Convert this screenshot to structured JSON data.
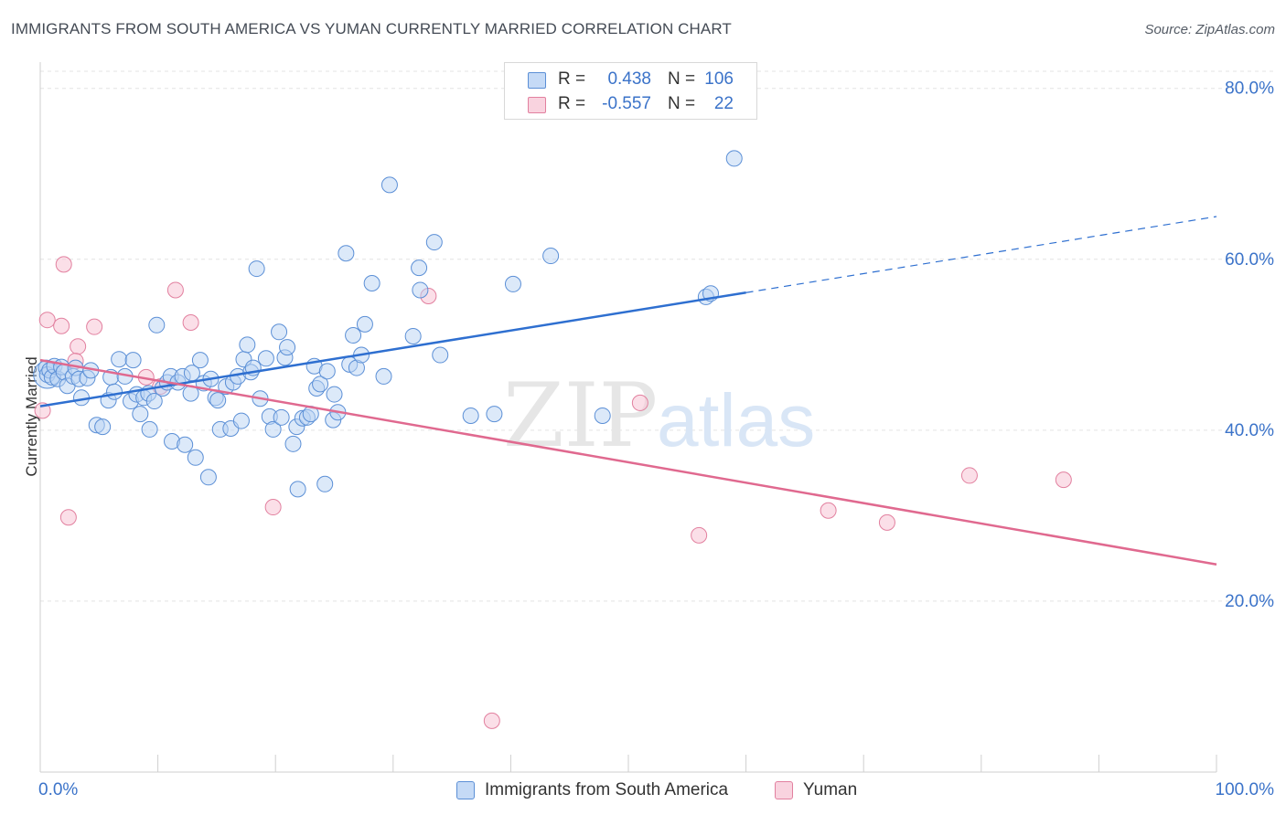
{
  "title": "IMMIGRANTS FROM SOUTH AMERICA VS YUMAN CURRENTLY MARRIED CORRELATION CHART",
  "source": "Source: ZipAtlas.com",
  "watermark": {
    "zip": "ZIP",
    "atlas": "atlas"
  },
  "stats": [
    {
      "r_label": "R =",
      "r_value": "0.438",
      "n_label": "N =",
      "n_value": "106",
      "color": "#a9c9f2",
      "border": "#5b8fd6"
    },
    {
      "r_label": "R =",
      "r_value": "-0.557",
      "n_label": "N =",
      "n_value": "22",
      "color": "#f7bfd0",
      "border": "#e2809f"
    }
  ],
  "legend": [
    {
      "label": "Immigrants from South America",
      "color": "#c5daf6",
      "border": "#5b8fd6"
    },
    {
      "label": "Yuman",
      "color": "#f9d3df",
      "border": "#e2809f"
    }
  ],
  "chart_data": {
    "type": "scatter",
    "title": "IMMIGRANTS FROM SOUTH AMERICA VS YUMAN CURRENTLY MARRIED CORRELATION CHART",
    "xlabel": "",
    "ylabel": "Currently Married",
    "xlim": [
      0,
      100
    ],
    "ylim": [
      0,
      82
    ],
    "x_tick_labels": [
      "0.0%",
      "100.0%"
    ],
    "y_ticks": [
      20,
      40,
      60,
      80
    ],
    "y_tick_labels": [
      "20.0%",
      "40.0%",
      "60.0%",
      "80.0%"
    ],
    "grid": true,
    "legend_position": "bottom",
    "series": [
      {
        "name": "Immigrants from South America",
        "color": "#5b8fd6",
        "fill": "#b9d3f3",
        "trend": {
          "x": [
            0,
            60
          ],
          "y": [
            42.8,
            56.1
          ],
          "dashed_extension": {
            "x": [
              60,
              100
            ],
            "y": [
              56.1,
              65.0
            ]
          },
          "color": "#2e6fd0"
        },
        "points": [
          [
            0.5,
            47.3
          ],
          [
            0.6,
            46.5
          ],
          [
            0.8,
            47.0
          ],
          [
            1.0,
            46.2
          ],
          [
            1.2,
            47.5
          ],
          [
            1.5,
            46.0
          ],
          [
            1.8,
            47.4
          ],
          [
            2.0,
            46.8
          ],
          [
            2.3,
            45.2
          ],
          [
            2.8,
            46.3
          ],
          [
            3.0,
            47.3
          ],
          [
            3.3,
            46.0
          ],
          [
            3.5,
            43.8
          ],
          [
            4.0,
            46.1
          ],
          [
            4.3,
            47.0
          ],
          [
            4.8,
            40.6
          ],
          [
            5.3,
            40.4
          ],
          [
            5.8,
            43.5
          ],
          [
            6.0,
            46.2
          ],
          [
            6.3,
            44.5
          ],
          [
            6.7,
            48.3
          ],
          [
            7.2,
            46.3
          ],
          [
            7.7,
            43.4
          ],
          [
            7.9,
            48.2
          ],
          [
            8.2,
            44.2
          ],
          [
            8.5,
            41.9
          ],
          [
            8.8,
            43.8
          ],
          [
            9.2,
            44.3
          ],
          [
            9.3,
            40.1
          ],
          [
            9.7,
            43.4
          ],
          [
            9.9,
            52.3
          ],
          [
            10.4,
            44.9
          ],
          [
            10.8,
            45.6
          ],
          [
            11.1,
            46.3
          ],
          [
            11.2,
            38.7
          ],
          [
            11.7,
            45.6
          ],
          [
            12.1,
            46.3
          ],
          [
            12.3,
            38.3
          ],
          [
            12.8,
            44.3
          ],
          [
            12.9,
            46.7
          ],
          [
            13.2,
            36.8
          ],
          [
            13.6,
            48.2
          ],
          [
            13.9,
            45.5
          ],
          [
            14.3,
            34.5
          ],
          [
            14.5,
            46.0
          ],
          [
            14.9,
            43.8
          ],
          [
            15.1,
            43.5
          ],
          [
            15.3,
            40.1
          ],
          [
            15.8,
            45.1
          ],
          [
            16.2,
            40.2
          ],
          [
            16.4,
            45.6
          ],
          [
            16.8,
            46.3
          ],
          [
            17.1,
            41.1
          ],
          [
            17.3,
            48.3
          ],
          [
            17.6,
            50.0
          ],
          [
            17.9,
            46.8
          ],
          [
            18.1,
            47.3
          ],
          [
            18.4,
            58.9
          ],
          [
            18.7,
            43.7
          ],
          [
            19.2,
            48.4
          ],
          [
            19.5,
            41.6
          ],
          [
            19.8,
            40.1
          ],
          [
            20.3,
            51.5
          ],
          [
            20.5,
            41.5
          ],
          [
            20.8,
            48.5
          ],
          [
            21.0,
            49.7
          ],
          [
            21.5,
            38.4
          ],
          [
            21.8,
            40.4
          ],
          [
            21.9,
            33.1
          ],
          [
            22.3,
            41.4
          ],
          [
            22.7,
            41.5
          ],
          [
            23.0,
            41.9
          ],
          [
            23.3,
            47.5
          ],
          [
            23.5,
            44.9
          ],
          [
            23.8,
            45.4
          ],
          [
            24.2,
            33.7
          ],
          [
            24.4,
            46.9
          ],
          [
            24.9,
            41.2
          ],
          [
            25.0,
            44.2
          ],
          [
            25.3,
            42.1
          ],
          [
            26.0,
            60.7
          ],
          [
            26.3,
            47.7
          ],
          [
            26.6,
            51.1
          ],
          [
            26.9,
            47.3
          ],
          [
            27.3,
            48.8
          ],
          [
            27.6,
            52.4
          ],
          [
            28.2,
            57.2
          ],
          [
            29.2,
            46.3
          ],
          [
            29.7,
            68.7
          ],
          [
            31.7,
            51.0
          ],
          [
            32.2,
            59.0
          ],
          [
            32.3,
            56.4
          ],
          [
            33.5,
            62.0
          ],
          [
            34.0,
            48.8
          ],
          [
            36.6,
            41.7
          ],
          [
            38.6,
            41.9
          ],
          [
            40.2,
            57.1
          ],
          [
            43.4,
            60.4
          ],
          [
            47.8,
            41.7
          ],
          [
            56.6,
            55.6
          ],
          [
            57.0,
            56.0
          ],
          [
            59.0,
            71.8
          ]
        ]
      },
      {
        "name": "Yuman",
        "color": "#e2809f",
        "fill": "#f7c4d5",
        "trend": {
          "x": [
            0,
            100
          ],
          "y": [
            48.2,
            24.3
          ],
          "color": "#e0698f"
        },
        "points": [
          [
            0.2,
            42.3
          ],
          [
            0.6,
            52.9
          ],
          [
            1.8,
            52.2
          ],
          [
            2.0,
            59.4
          ],
          [
            2.4,
            29.8
          ],
          [
            3.2,
            49.8
          ],
          [
            3.0,
            48.1
          ],
          [
            4.6,
            52.1
          ],
          [
            9.0,
            46.2
          ],
          [
            10.2,
            45.1
          ],
          [
            11.5,
            56.4
          ],
          [
            12.8,
            52.6
          ],
          [
            19.8,
            31.0
          ],
          [
            33.0,
            55.7
          ],
          [
            38.4,
            6.0
          ],
          [
            51.0,
            43.2
          ],
          [
            56.0,
            27.7
          ],
          [
            67.0,
            30.6
          ],
          [
            72.0,
            29.2
          ],
          [
            79.0,
            34.7
          ],
          [
            87.0,
            34.2
          ]
        ]
      }
    ]
  }
}
